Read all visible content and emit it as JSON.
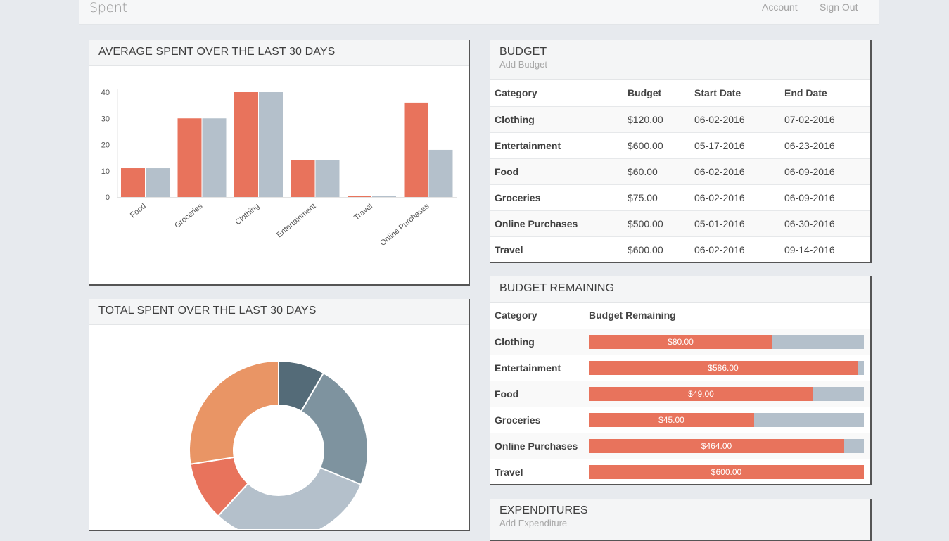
{
  "app": {
    "title": "Spent"
  },
  "nav": {
    "account": "Account",
    "sign_out": "Sign Out"
  },
  "avg_panel": {
    "title": "AVERAGE SPENT OVER THE LAST 30 DAYS"
  },
  "total_panel": {
    "title": "TOTAL SPENT OVER THE LAST 30 DAYS"
  },
  "budget_panel": {
    "title": "BUDGET",
    "add_label": "Add Budget",
    "headers": [
      "Category",
      "Budget",
      "Start Date",
      "End Date"
    ],
    "rows": [
      {
        "category": "Clothing",
        "budget": "$120.00",
        "start": "06-02-2016",
        "end": "07-02-2016"
      },
      {
        "category": "Entertainment",
        "budget": "$600.00",
        "start": "05-17-2016",
        "end": "06-23-2016"
      },
      {
        "category": "Food",
        "budget": "$60.00",
        "start": "06-02-2016",
        "end": "06-09-2016"
      },
      {
        "category": "Groceries",
        "budget": "$75.00",
        "start": "06-02-2016",
        "end": "06-09-2016"
      },
      {
        "category": "Online Purchases",
        "budget": "$500.00",
        "start": "05-01-2016",
        "end": "06-30-2016"
      },
      {
        "category": "Travel",
        "budget": "$600.00",
        "start": "06-02-2016",
        "end": "09-14-2016"
      }
    ]
  },
  "remaining_panel": {
    "title": "BUDGET REMAINING",
    "headers": [
      "Category",
      "Budget Remaining"
    ],
    "rows": [
      {
        "category": "Clothing",
        "label": "$80.00",
        "fraction": 0.667
      },
      {
        "category": "Entertainment",
        "label": "$586.00",
        "fraction": 0.977
      },
      {
        "category": "Food",
        "label": "$49.00",
        "fraction": 0.817
      },
      {
        "category": "Groceries",
        "label": "$45.00",
        "fraction": 0.6
      },
      {
        "category": "Online Purchases",
        "label": "$464.00",
        "fraction": 0.928
      },
      {
        "category": "Travel",
        "label": "$600.00",
        "fraction": 1.0
      }
    ]
  },
  "expend_panel": {
    "title": "EXPENDITURES",
    "add_label": "Add Expenditure"
  },
  "colors": {
    "orange": "#e8735c",
    "gray": "#b4c0cb",
    "accent_orange": "#e99565",
    "slate_dark": "#546b78",
    "slate_mid": "#7e939f"
  },
  "chart_data": [
    {
      "type": "bar",
      "categories": [
        "Food",
        "Groceries",
        "Clothing",
        "Entertainment",
        "Travel",
        "Online Purchases"
      ],
      "series": [
        {
          "values": [
            11,
            30,
            40,
            14,
            0.5,
            36
          ],
          "color": "#e8735c"
        },
        {
          "values": [
            11,
            30,
            40,
            14,
            0.3,
            18
          ],
          "color": "#b4c0cb"
        }
      ],
      "y_ticks": [
        0,
        10,
        20,
        30,
        40
      ],
      "ylim": [
        0,
        40
      ]
    },
    {
      "type": "pie",
      "donut": true,
      "values": [
        11,
        30,
        40,
        14,
        36
      ],
      "colors": [
        "#546b78",
        "#7e939f",
        "#b4c0cb",
        "#e8735c",
        "#e99565"
      ],
      "visible_fraction_note": ""
    }
  ]
}
